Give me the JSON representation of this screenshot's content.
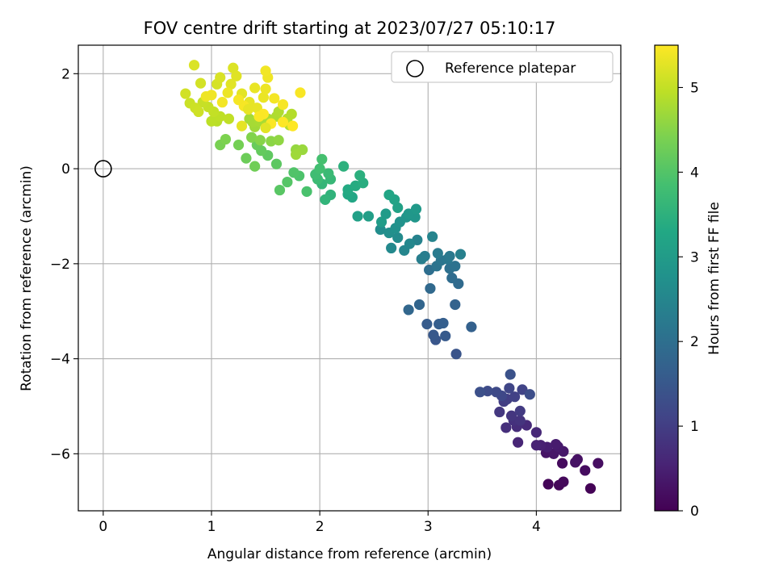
{
  "chart_data": {
    "type": "scatter",
    "title": "FOV centre drift starting at 2023/07/27 05:10:17",
    "xlabel": "Angular distance from reference (arcmin)",
    "ylabel": "Rotation from reference (arcmin)",
    "xlim": [
      -0.23,
      4.78
    ],
    "ylim": [
      -7.2,
      2.6
    ],
    "x_ticks": [
      0,
      1,
      2,
      3,
      4
    ],
    "y_ticks": [
      2,
      0,
      -2,
      -4,
      -6
    ],
    "x_tick_labels": [
      "0",
      "1",
      "2",
      "3",
      "4"
    ],
    "y_tick_labels": [
      "2",
      "0",
      "−2",
      "−4",
      "−6"
    ],
    "grid": true,
    "legend": {
      "placement": "top-right",
      "entries": [
        "Reference platepar"
      ]
    },
    "reference_point": {
      "x": 0,
      "y": 0
    },
    "colorbar": {
      "label": "Hours from first FF file",
      "range": [
        0,
        5.5
      ],
      "ticks": [
        0,
        1,
        2,
        3,
        4,
        5
      ],
      "tick_labels": [
        "0",
        "1",
        "2",
        "3",
        "4",
        "5"
      ],
      "colormap": "viridis"
    },
    "points": [
      [
        4.5,
        -6.73,
        0.03
      ],
      [
        4.11,
        -6.64,
        0.06
      ],
      [
        4.21,
        -6.66,
        0.09
      ],
      [
        4.25,
        -6.59,
        0.12
      ],
      [
        4.24,
        -6.2,
        0.15
      ],
      [
        4.45,
        -6.35,
        0.18
      ],
      [
        4.57,
        -6.2,
        0.21
      ],
      [
        4.38,
        -6.12,
        0.24
      ],
      [
        4.36,
        -6.18,
        0.27
      ],
      [
        4.09,
        -5.98,
        0.3
      ],
      [
        4.16,
        -6.0,
        0.33
      ],
      [
        4.25,
        -5.95,
        0.36
      ],
      [
        4.2,
        -5.85,
        0.4
      ],
      [
        4.18,
        -5.8,
        0.43
      ],
      [
        4.1,
        -5.86,
        0.46
      ],
      [
        4.04,
        -5.82,
        0.5
      ],
      [
        4.0,
        -5.82,
        0.54
      ],
      [
        3.83,
        -5.76,
        0.58
      ],
      [
        4.0,
        -5.55,
        0.62
      ],
      [
        3.91,
        -5.4,
        0.66
      ],
      [
        3.82,
        -5.43,
        0.7
      ],
      [
        3.72,
        -5.45,
        0.74
      ],
      [
        3.79,
        -5.3,
        0.78
      ],
      [
        3.85,
        -5.3,
        0.82
      ],
      [
        3.77,
        -5.2,
        0.86
      ],
      [
        3.66,
        -5.12,
        0.9
      ],
      [
        3.85,
        -5.1,
        0.94
      ],
      [
        3.7,
        -4.9,
        0.98
      ],
      [
        3.73,
        -4.85,
        1.02
      ],
      [
        3.8,
        -4.8,
        1.06
      ],
      [
        3.87,
        -4.65,
        1.1
      ],
      [
        3.75,
        -4.62,
        1.14
      ],
      [
        3.68,
        -4.78,
        1.18
      ],
      [
        3.63,
        -4.7,
        1.22
      ],
      [
        3.55,
        -4.68,
        1.26
      ],
      [
        3.94,
        -4.75,
        1.3
      ],
      [
        3.48,
        -4.7,
        1.34
      ],
      [
        3.76,
        -4.33,
        1.38
      ],
      [
        3.26,
        -3.9,
        1.42
      ],
      [
        3.07,
        -3.6,
        1.46
      ],
      [
        3.05,
        -3.5,
        1.5
      ],
      [
        3.16,
        -3.52,
        1.54
      ],
      [
        2.99,
        -3.27,
        1.58
      ],
      [
        3.1,
        -3.27,
        1.62
      ],
      [
        3.14,
        -3.25,
        1.66
      ],
      [
        3.4,
        -3.33,
        1.7
      ],
      [
        3.25,
        -2.86,
        1.74
      ],
      [
        2.92,
        -2.86,
        1.78
      ],
      [
        2.82,
        -2.97,
        1.82
      ],
      [
        3.02,
        -2.52,
        1.86
      ],
      [
        3.28,
        -2.42,
        1.9
      ],
      [
        3.22,
        -2.3,
        1.94
      ],
      [
        3.01,
        -2.13,
        1.98
      ],
      [
        3.2,
        -2.1,
        2.02
      ],
      [
        3.25,
        -2.05,
        2.06
      ],
      [
        3.08,
        -2.05,
        2.1
      ],
      [
        3.12,
        -1.93,
        2.14
      ],
      [
        3.18,
        -1.9,
        2.18
      ],
      [
        3.2,
        -1.84,
        2.22
      ],
      [
        3.09,
        -1.78,
        2.26
      ],
      [
        2.97,
        -1.84,
        2.3
      ],
      [
        2.94,
        -1.9,
        2.34
      ],
      [
        3.3,
        -1.8,
        2.38
      ],
      [
        2.9,
        -1.5,
        2.42
      ],
      [
        3.04,
        -1.43,
        2.46
      ],
      [
        2.78,
        -1.72,
        2.5
      ],
      [
        2.83,
        -1.58,
        2.54
      ],
      [
        2.66,
        -1.67,
        2.58
      ],
      [
        2.72,
        -1.45,
        2.62
      ],
      [
        2.56,
        -1.28,
        2.66
      ],
      [
        2.64,
        -1.35,
        2.7
      ],
      [
        2.7,
        -1.25,
        2.74
      ],
      [
        2.74,
        -1.12,
        2.78
      ],
      [
        2.8,
        -1.02,
        2.82
      ],
      [
        2.88,
        -1.02,
        2.86
      ],
      [
        2.82,
        -0.95,
        2.9
      ],
      [
        2.89,
        -0.85,
        2.94
      ],
      [
        2.61,
        -0.95,
        2.98
      ],
      [
        2.57,
        -1.12,
        3.02
      ],
      [
        2.45,
        -1.0,
        3.06
      ],
      [
        2.35,
        -1.0,
        3.1
      ],
      [
        2.72,
        -0.82,
        3.14
      ],
      [
        2.69,
        -0.65,
        3.18
      ],
      [
        2.64,
        -0.55,
        3.22
      ],
      [
        2.3,
        -0.6,
        3.26
      ],
      [
        2.26,
        -0.54,
        3.3
      ],
      [
        2.26,
        -0.44,
        3.34
      ],
      [
        2.33,
        -0.36,
        3.38
      ],
      [
        2.4,
        -0.3,
        3.42
      ],
      [
        2.37,
        -0.14,
        3.46
      ],
      [
        2.22,
        0.05,
        3.5
      ],
      [
        2.1,
        -0.55,
        3.54
      ],
      [
        2.05,
        -0.65,
        3.58
      ],
      [
        2.02,
        -0.32,
        3.62
      ],
      [
        2.1,
        -0.22,
        3.66
      ],
      [
        2.08,
        -0.1,
        3.7
      ],
      [
        1.98,
        -0.22,
        3.74
      ],
      [
        1.96,
        -0.12,
        3.78
      ],
      [
        2.0,
        0.0,
        3.82
      ],
      [
        2.02,
        0.2,
        3.86
      ],
      [
        1.88,
        -0.48,
        3.9
      ],
      [
        1.81,
        -0.15,
        3.94
      ],
      [
        1.76,
        -0.08,
        3.98
      ],
      [
        1.7,
        -0.28,
        4.02
      ],
      [
        1.63,
        -0.45,
        4.06
      ],
      [
        1.6,
        0.1,
        4.1
      ],
      [
        1.52,
        0.28,
        4.14
      ],
      [
        1.46,
        0.38,
        4.18
      ],
      [
        1.42,
        0.5,
        4.22
      ],
      [
        1.32,
        0.22,
        4.26
      ],
      [
        1.4,
        0.05,
        4.3
      ],
      [
        1.25,
        0.5,
        4.34
      ],
      [
        1.08,
        0.5,
        4.38
      ],
      [
        1.13,
        0.62,
        4.42
      ],
      [
        1.37,
        0.66,
        4.46
      ],
      [
        1.45,
        0.6,
        4.5
      ],
      [
        1.55,
        0.58,
        4.54
      ],
      [
        1.62,
        0.6,
        4.58
      ],
      [
        1.78,
        0.4,
        4.62
      ],
      [
        1.84,
        0.4,
        4.66
      ],
      [
        1.78,
        0.3,
        4.7
      ],
      [
        1.4,
        0.88,
        4.72
      ],
      [
        1.35,
        1.05,
        4.74
      ],
      [
        1.38,
        0.98,
        4.76
      ],
      [
        1.44,
        1.0,
        4.78
      ],
      [
        1.52,
        1.05,
        4.8
      ],
      [
        1.6,
        1.1,
        4.82
      ],
      [
        1.62,
        1.2,
        4.84
      ],
      [
        1.7,
        1.05,
        4.86
      ],
      [
        1.74,
        1.15,
        4.88
      ],
      [
        1.72,
        0.92,
        4.9
      ],
      [
        1.05,
        1.0,
        4.92
      ],
      [
        1.0,
        1.0,
        4.94
      ],
      [
        1.08,
        1.1,
        4.96
      ],
      [
        1.16,
        1.05,
        4.98
      ],
      [
        1.02,
        1.2,
        5.0
      ],
      [
        0.97,
        1.3,
        5.02
      ],
      [
        0.92,
        1.4,
        5.04
      ],
      [
        0.8,
        1.38,
        5.06
      ],
      [
        0.85,
        1.28,
        5.08
      ],
      [
        0.88,
        1.2,
        5.1
      ],
      [
        0.76,
        1.58,
        5.12
      ],
      [
        0.9,
        1.8,
        5.14
      ],
      [
        1.05,
        1.78,
        5.16
      ],
      [
        1.08,
        1.92,
        5.18
      ],
      [
        0.84,
        2.18,
        5.2
      ],
      [
        1.2,
        2.12,
        5.22
      ],
      [
        1.23,
        1.95,
        5.24
      ],
      [
        1.18,
        1.78,
        5.26
      ],
      [
        1.28,
        1.58,
        5.28
      ],
      [
        1.35,
        1.4,
        5.3
      ],
      [
        1.42,
        1.28,
        5.32
      ],
      [
        1.48,
        1.5,
        5.34
      ],
      [
        1.5,
        1.68,
        5.36
      ],
      [
        1.52,
        1.92,
        5.38
      ],
      [
        1.5,
        2.06,
        5.4
      ],
      [
        1.58,
        1.48,
        5.42
      ],
      [
        1.66,
        1.35,
        5.44
      ],
      [
        1.82,
        1.6,
        5.46
      ],
      [
        1.55,
        0.95,
        5.48
      ],
      [
        1.75,
        0.9,
        5.5
      ],
      [
        1.66,
        0.98,
        5.5
      ],
      [
        1.48,
        1.15,
        5.49
      ],
      [
        1.44,
        1.1,
        5.47
      ],
      [
        1.3,
        1.32,
        5.45
      ],
      [
        1.25,
        1.45,
        5.43
      ],
      [
        1.1,
        1.4,
        5.41
      ],
      [
        1.0,
        1.55,
        5.39
      ],
      [
        0.95,
        1.52,
        5.37
      ],
      [
        1.15,
        1.6,
        5.35
      ],
      [
        1.4,
        1.7,
        5.33
      ],
      [
        1.34,
        1.25,
        5.31
      ],
      [
        1.28,
        0.9,
        5.29
      ],
      [
        1.5,
        0.86,
        5.27
      ]
    ]
  }
}
